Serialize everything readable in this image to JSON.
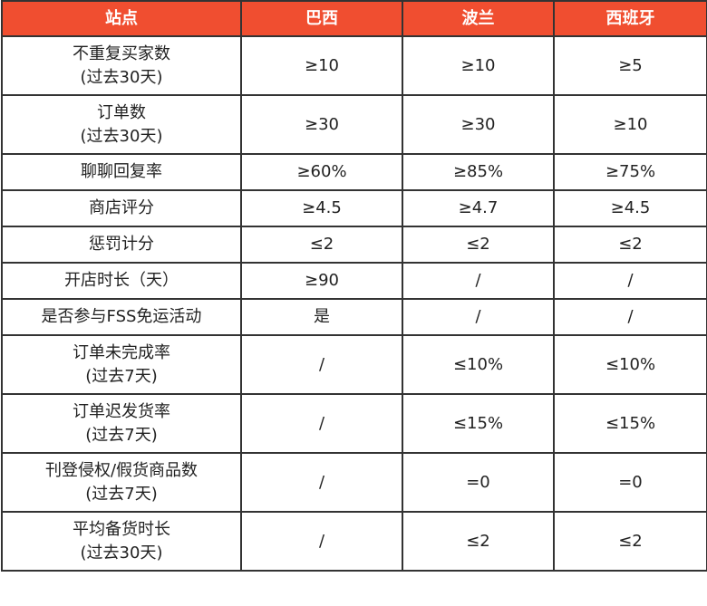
{
  "header_color": "#f04e30",
  "columns": [
    "站点",
    "巴西",
    "波兰",
    "西班牙"
  ],
  "rows": [
    {
      "label": "不重复买家数",
      "sub": "(过去30天)",
      "values": [
        "≥10",
        "≥10",
        "≥5"
      ]
    },
    {
      "label": "订单数",
      "sub": "(过去30天)",
      "values": [
        "≥30",
        "≥30",
        "≥10"
      ]
    },
    {
      "label": "聊聊回复率",
      "sub": "",
      "values": [
        "≥60%",
        "≥85%",
        "≥75%"
      ]
    },
    {
      "label": "商店评分",
      "sub": "",
      "values": [
        "≥4.5",
        "≥4.7",
        "≥4.5"
      ]
    },
    {
      "label": "惩罚计分",
      "sub": "",
      "values": [
        "≤2",
        "≤2",
        "≤2"
      ]
    },
    {
      "label": "开店时长（天）",
      "sub": "",
      "values": [
        "≥90",
        "/",
        "/"
      ]
    },
    {
      "label": "是否参与FSS免运活动",
      "sub": "",
      "values": [
        "是",
        "/",
        "/"
      ]
    },
    {
      "label": "订单未完成率",
      "sub": "(过去7天)",
      "values": [
        "/",
        "≤10%",
        "≤10%"
      ]
    },
    {
      "label": "订单迟发货率",
      "sub": "(过去7天)",
      "values": [
        "/",
        "≤15%",
        "≤15%"
      ]
    },
    {
      "label": "刊登侵权/假货商品数",
      "sub": "(过去7天)",
      "values": [
        "/",
        "=0",
        "=0"
      ]
    },
    {
      "label": "平均备货时长",
      "sub": "(过去30天)",
      "values": [
        "/",
        "≤2",
        "≤2"
      ]
    }
  ]
}
